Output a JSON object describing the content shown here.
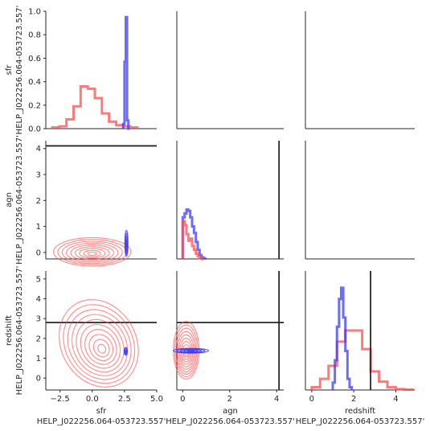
{
  "chart_data": {
    "type": "pairplot",
    "object_label": "HELP_J022256.064-053723.557'",
    "variables": [
      "sfr",
      "agn",
      "redshift"
    ],
    "colors": {
      "prior": "#ff4d4d",
      "posterior": "#3b3bff",
      "truth": "#262626"
    },
    "axes": {
      "sfr": {
        "lim": [
          -3.6,
          5.0
        ],
        "ticks": [
          -2.5,
          0.0,
          2.5,
          5.0
        ],
        "tick_labels": [
          "−2.5",
          "0.0",
          "2.5",
          "5.0"
        ]
      },
      "agn": {
        "lim": [
          -0.25,
          4.3
        ],
        "ticks": [
          0,
          1,
          2,
          3,
          4
        ],
        "tick_labels": [
          "0",
          "1",
          "2",
          "3",
          "4"
        ]
      },
      "redshift": {
        "lim": [
          -0.6,
          5.4
        ],
        "ticks": [
          0,
          1,
          2,
          3,
          4,
          5
        ],
        "tick_labels": [
          "0",
          "1",
          "2",
          "3",
          "4",
          "5"
        ]
      },
      "agn_x": {
        "lim": [
          -0.25,
          4.3
        ],
        "ticks": [
          0,
          2,
          4
        ],
        "tick_labels": [
          "0",
          "2",
          "4"
        ]
      },
      "redshift_x": {
        "lim": [
          -0.3,
          4.9
        ],
        "ticks": [
          0,
          2,
          4
        ],
        "tick_labels": [
          "0",
          "2",
          "4"
        ]
      },
      "diag_y": {
        "lim": [
          0.0,
          1.0
        ],
        "ticks": [
          0.0,
          0.2,
          0.4,
          0.6,
          0.8,
          1.0
        ],
        "tick_labels": [
          "0.0",
          "0.2",
          "0.4",
          "0.6",
          "0.8",
          "1.0"
        ]
      }
    },
    "truth": {
      "agn": 4.1,
      "redshift": 2.8
    },
    "hist_sfr": {
      "prior": {
        "edges": [
          -3.1,
          -2.55,
          -2.0,
          -1.45,
          -0.9,
          -0.35,
          0.2,
          0.75,
          1.3,
          1.85,
          2.4,
          2.95,
          3.5
        ],
        "density": [
          0.01,
          0.02,
          0.08,
          0.19,
          0.36,
          0.34,
          0.26,
          0.13,
          0.06,
          0.03,
          0.02,
          0.01
        ]
      },
      "posterior": {
        "edges": [
          2.4,
          2.5,
          2.6,
          2.7,
          2.8,
          2.9
        ],
        "density": [
          0.04,
          0.57,
          0.95,
          0.07,
          0.0
        ]
      }
    },
    "hist_agn": {
      "prior": {
        "edges": [
          0.0,
          0.08,
          0.16,
          0.24,
          0.32,
          0.4,
          0.48,
          0.56,
          0.64,
          0.72,
          0.8,
          0.88
        ],
        "density": [
          1.45,
          1.3,
          0.95,
          0.7,
          0.78,
          0.5,
          0.35,
          0.2,
          0.1,
          0.03,
          0.0
        ]
      },
      "posterior": {
        "edges": [
          0.0,
          0.08,
          0.16,
          0.24,
          0.32,
          0.4,
          0.48,
          0.56,
          0.64,
          0.72,
          0.8,
          0.88,
          0.96
        ],
        "density": [
          1.6,
          1.75,
          1.9,
          1.85,
          1.6,
          1.25,
          1.0,
          0.65,
          0.35,
          0.15,
          0.06,
          0.02
        ]
      }
    },
    "hist_redshift": {
      "prior": {
        "edges": [
          0.0,
          0.4,
          0.8,
          1.2,
          1.6,
          2.0,
          2.4,
          2.8,
          3.2,
          3.6,
          4.0,
          4.4,
          4.8
        ],
        "density": [
          0.15,
          0.6,
          1.3,
          2.6,
          3.2,
          3.2,
          2.2,
          1.0,
          0.45,
          0.15,
          0.05,
          0.02
        ]
      },
      "posterior": {
        "edges": [
          1.0,
          1.1,
          1.2,
          1.3,
          1.4,
          1.5,
          1.6,
          1.7,
          1.8,
          1.9
        ],
        "density": [
          0.4,
          1.6,
          3.4,
          4.9,
          5.5,
          3.9,
          2.1,
          0.6,
          0.15
        ]
      }
    },
    "kde_sfr_agn": {
      "prior": {
        "cx": 0.0,
        "cy": 0.02,
        "rx": 3.0,
        "ry": 0.55
      },
      "posterior": {
        "cx": 2.65,
        "cy": 0.35,
        "rx": 0.12,
        "ry": 0.5
      }
    },
    "kde_sfr_redshift": {
      "prior": {
        "cx": 0.5,
        "cy": 1.75,
        "rx": 2.9,
        "ry": 2.3,
        "rot": 30
      },
      "posterior": {
        "cx": 2.6,
        "cy": 1.35,
        "rx": 0.12,
        "ry": 0.2
      }
    },
    "kde_agn_redshift": {
      "prior": {
        "cx": 0.15,
        "cy": 1.4,
        "rx": 0.55,
        "ry": 1.45
      },
      "posterior": {
        "cx": 0.35,
        "cy": 1.38,
        "rx": 0.75,
        "ry": 0.12
      }
    }
  }
}
